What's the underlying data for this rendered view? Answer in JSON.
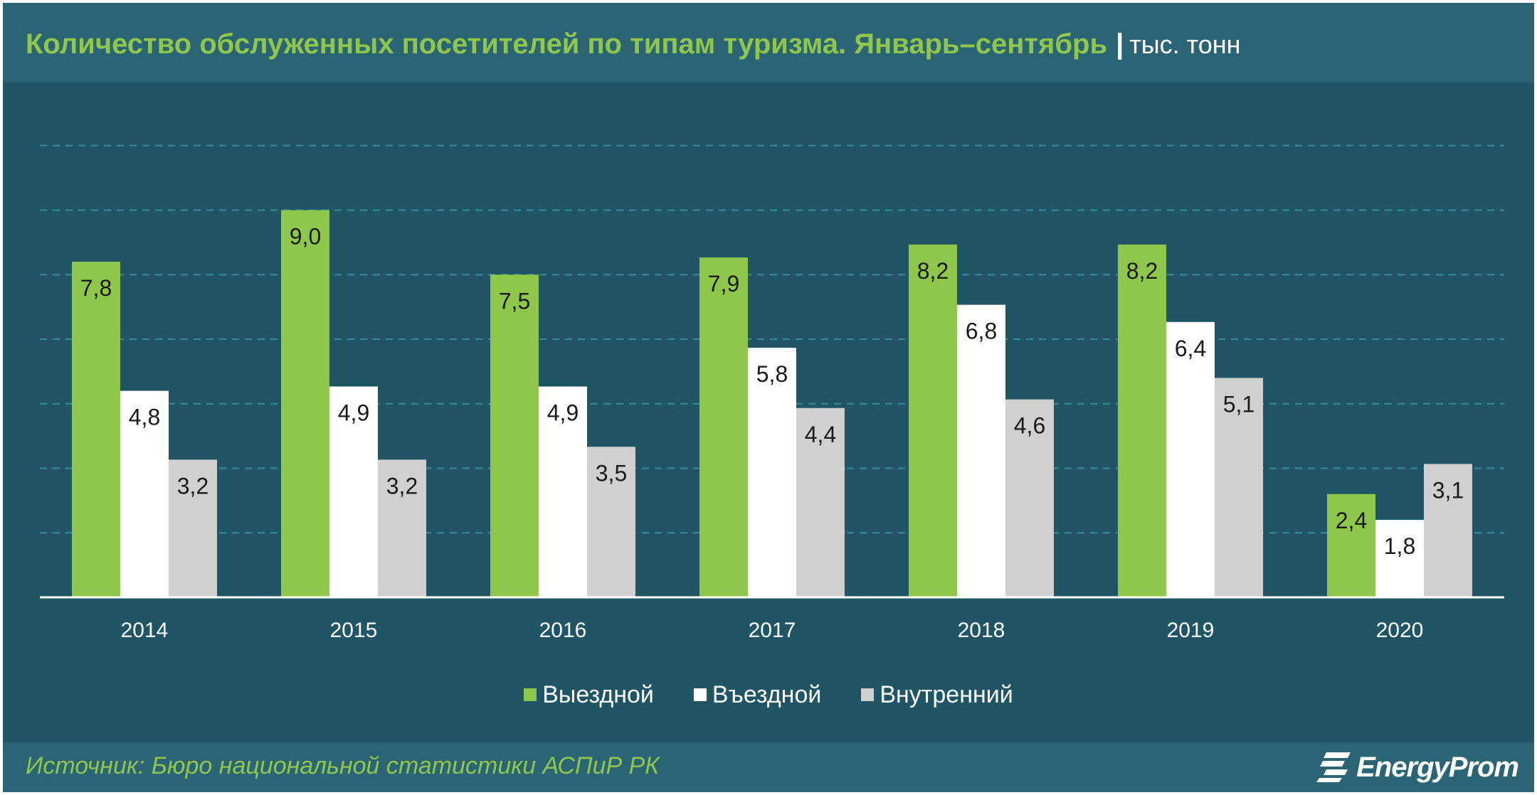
{
  "title": "Количество обслуженных посетителей по типам туризма. Январь–сентябрь",
  "title_separator": "|",
  "unit": "тыс. тонн",
  "source": "Источник: Бюро национальной  статистики АСПиР РК",
  "logo_text": "EnergyProm",
  "colors": {
    "background": "#1f5565",
    "title_bar": "#2b6474",
    "accent_green": "#8ec74b",
    "white": "#ffffff",
    "gray": "#d0d0d0",
    "gridline": "#3b8a9a"
  },
  "chart_data": {
    "type": "bar",
    "title": "Количество обслуженных посетителей по типам туризма. Январь–сентябрь",
    "unit": "тыс. тонн",
    "categories": [
      "2014",
      "2015",
      "2016",
      "2017",
      "2018",
      "2019",
      "2020"
    ],
    "series": [
      {
        "name": "Выездной",
        "color": "#8ec74b",
        "values": [
          7.8,
          9.0,
          7.5,
          7.9,
          8.2,
          8.2,
          2.4
        ],
        "labels": [
          "7,8",
          "9,0",
          "7,5",
          "7,9",
          "8,2",
          "8,2",
          "2,4"
        ]
      },
      {
        "name": "Въездной",
        "color": "#ffffff",
        "values": [
          4.8,
          4.9,
          4.9,
          5.8,
          6.8,
          6.4,
          1.8
        ],
        "labels": [
          "4,8",
          "4,9",
          "4,9",
          "5,8",
          "6,8",
          "6,4",
          "1,8"
        ]
      },
      {
        "name": "Внутренний",
        "color": "#d0d0d0",
        "values": [
          3.2,
          3.2,
          3.5,
          4.4,
          4.6,
          5.1,
          3.1
        ],
        "labels": [
          "3,2",
          "3,2",
          "3,5",
          "4,4",
          "4,6",
          "5,1",
          "3,1"
        ]
      }
    ],
    "ylim": [
      0,
      10.5
    ],
    "grid": true,
    "gridlines": [
      1.5,
      3.0,
      4.5,
      6.0,
      7.5,
      9.0,
      10.5
    ],
    "legend_position": "bottom-center",
    "xlabel": "",
    "ylabel": ""
  }
}
